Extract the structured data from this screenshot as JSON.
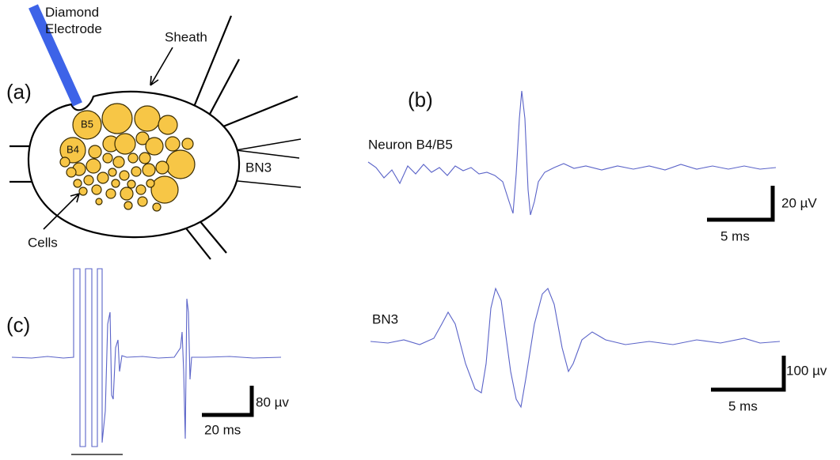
{
  "panel_a": {
    "label": "(a)",
    "electrode": "Diamond\nElectrode",
    "sheath": "Sheath",
    "cells": [
      "B5",
      "B4"
    ],
    "nerve": "BN3",
    "cells_label": "Cells"
  },
  "panel_b": {
    "label": "(b)",
    "trace1": "Neuron B4/B5",
    "scale1_y": "20 µV",
    "scale1_x": "5 ms",
    "trace2": "BN3",
    "scale2_y": "100 µv",
    "scale2_x": "5 ms"
  },
  "panel_c": {
    "label": "(c)",
    "scale_y": "80 µv",
    "scale_x": "20 ms"
  }
}
